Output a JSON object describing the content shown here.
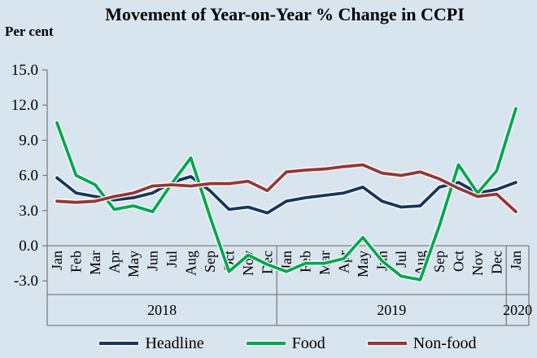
{
  "colors": {
    "background": "#d8e4ee",
    "axis_line": "#7f7f7f",
    "text": "#000000",
    "headline": "#17375e",
    "food": "#00a84f",
    "nonfood": "#953735"
  },
  "chart_data": {
    "type": "line",
    "title": "Movement of Year-on-Year % Change in CCPI",
    "ylabel": "Per cent",
    "ylim": [
      -3.0,
      15.0
    ],
    "yticks": [
      15.0,
      12.0,
      9.0,
      6.0,
      3.0,
      0.0,
      -3.0
    ],
    "grid": false,
    "legend_position": "bottom",
    "x_months": [
      "Jan",
      "Feb",
      "Mar",
      "Apr",
      "May",
      "Jun",
      "Jul",
      "Aug",
      "Sep",
      "Oct",
      "Nov",
      "Dec",
      "Jan",
      "Feb",
      "Mar",
      "Apr",
      "May",
      "Jun",
      "Jul",
      "Aug",
      "Sep",
      "Oct",
      "Nov",
      "Dec",
      "Jan"
    ],
    "year_groups": [
      {
        "label": "2018",
        "start": 0,
        "end": 11
      },
      {
        "label": "2019",
        "start": 12,
        "end": 23
      },
      {
        "label": "2020",
        "start": 24,
        "end": 24
      }
    ],
    "series": [
      {
        "name": "Headline",
        "color": "#17375e",
        "values": [
          5.8,
          4.5,
          4.2,
          3.9,
          4.1,
          4.5,
          5.4,
          5.9,
          4.7,
          3.1,
          3.3,
          2.8,
          3.8,
          4.1,
          4.3,
          4.5,
          5.0,
          3.8,
          3.3,
          3.4,
          5.0,
          5.4,
          4.5,
          4.8,
          5.4
        ]
      },
      {
        "name": "Food",
        "color": "#00a84f",
        "values": [
          10.5,
          6.0,
          5.2,
          3.1,
          3.4,
          2.9,
          5.3,
          7.5,
          2.5,
          -2.2,
          -0.8,
          -1.6,
          -2.2,
          -1.5,
          -1.5,
          -1.1,
          0.7,
          -1.3,
          -2.6,
          -2.9,
          1.7,
          6.9,
          4.5,
          6.4,
          11.7
        ]
      },
      {
        "name": "Non-food",
        "color": "#953735",
        "values": [
          3.8,
          3.7,
          3.8,
          4.2,
          4.5,
          5.1,
          5.2,
          5.1,
          5.3,
          5.3,
          5.5,
          4.7,
          6.3,
          6.45,
          6.55,
          6.75,
          6.9,
          6.2,
          6.0,
          6.3,
          5.7,
          4.9,
          4.2,
          4.4,
          2.9
        ]
      }
    ]
  }
}
